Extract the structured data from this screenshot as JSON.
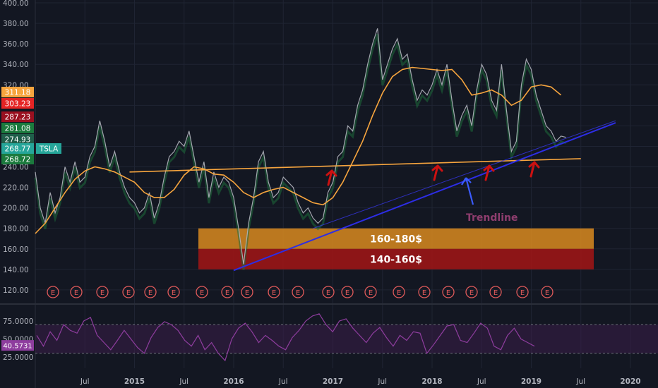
{
  "chart_data": [
    {
      "type": "line",
      "symbol": "TSLA",
      "title": "",
      "xlabel": "",
      "ylabel": "",
      "ylim": [
        100,
        400
      ],
      "y_ticks": [
        "400.00",
        "380.00",
        "360.00",
        "340.00",
        "320.00",
        "300.00",
        "280.00",
        "260.00",
        "240.00",
        "220.00",
        "200.00",
        "180.00",
        "160.00",
        "140.00",
        "120.00"
      ],
      "x_ticks": [
        {
          "label": "Jul",
          "t": 2014.5
        },
        {
          "label": "2015",
          "t": 2015.0
        },
        {
          "label": "Jul",
          "t": 2015.5
        },
        {
          "label": "2016",
          "t": 2016.0
        },
        {
          "label": "Jul",
          "t": 2016.5
        },
        {
          "label": "2017",
          "t": 2017.0
        },
        {
          "label": "Jul",
          "t": 2017.5
        },
        {
          "label": "2018",
          "t": 2018.0
        },
        {
          "label": "Jul",
          "t": 2018.5
        },
        {
          "label": "2019",
          "t": 2019.0
        },
        {
          "label": "Jul",
          "t": 2019.5
        },
        {
          "label": "2020",
          "t": 2020.0
        }
      ],
      "xlim": [
        2014.0,
        2020.6
      ],
      "series": [
        {
          "key": "price",
          "color": "#b2b5be",
          "points": [
            [
              2014.0,
              235
            ],
            [
              2014.05,
              200
            ],
            [
              2014.1,
              185
            ],
            [
              2014.15,
              215
            ],
            [
              2014.2,
              195
            ],
            [
              2014.25,
              210
            ],
            [
              2014.3,
              240
            ],
            [
              2014.35,
              225
            ],
            [
              2014.4,
              245
            ],
            [
              2014.45,
              225
            ],
            [
              2014.5,
              230
            ],
            [
              2014.55,
              250
            ],
            [
              2014.6,
              260
            ],
            [
              2014.65,
              285
            ],
            [
              2014.7,
              265
            ],
            [
              2014.75,
              240
            ],
            [
              2014.8,
              255
            ],
            [
              2014.85,
              235
            ],
            [
              2014.9,
              220
            ],
            [
              2014.95,
              210
            ],
            [
              2015.0,
              205
            ],
            [
              2015.05,
              195
            ],
            [
              2015.1,
              200
            ],
            [
              2015.15,
              215
            ],
            [
              2015.2,
              190
            ],
            [
              2015.25,
              205
            ],
            [
              2015.3,
              230
            ],
            [
              2015.35,
              250
            ],
            [
              2015.4,
              255
            ],
            [
              2015.45,
              265
            ],
            [
              2015.5,
              260
            ],
            [
              2015.55,
              275
            ],
            [
              2015.6,
              250
            ],
            [
              2015.65,
              225
            ],
            [
              2015.7,
              245
            ],
            [
              2015.75,
              210
            ],
            [
              2015.8,
              235
            ],
            [
              2015.85,
              220
            ],
            [
              2015.9,
              230
            ],
            [
              2015.95,
              225
            ],
            [
              2016.0,
              210
            ],
            [
              2016.05,
              180
            ],
            [
              2016.1,
              145
            ],
            [
              2016.15,
              185
            ],
            [
              2016.2,
              210
            ],
            [
              2016.25,
              245
            ],
            [
              2016.3,
              255
            ],
            [
              2016.35,
              225
            ],
            [
              2016.4,
              210
            ],
            [
              2016.45,
              215
            ],
            [
              2016.5,
              230
            ],
            [
              2016.55,
              225
            ],
            [
              2016.6,
              220
            ],
            [
              2016.65,
              205
            ],
            [
              2016.7,
              195
            ],
            [
              2016.75,
              200
            ],
            [
              2016.8,
              190
            ],
            [
              2016.85,
              185
            ],
            [
              2016.9,
              190
            ],
            [
              2016.95,
              215
            ],
            [
              2017.0,
              225
            ],
            [
              2017.05,
              250
            ],
            [
              2017.1,
              255
            ],
            [
              2017.15,
              280
            ],
            [
              2017.2,
              275
            ],
            [
              2017.25,
              300
            ],
            [
              2017.3,
              315
            ],
            [
              2017.35,
              340
            ],
            [
              2017.4,
              360
            ],
            [
              2017.45,
              375
            ],
            [
              2017.5,
              325
            ],
            [
              2017.55,
              340
            ],
            [
              2017.6,
              355
            ],
            [
              2017.65,
              365
            ],
            [
              2017.7,
              345
            ],
            [
              2017.75,
              350
            ],
            [
              2017.8,
              325
            ],
            [
              2017.85,
              305
            ],
            [
              2017.9,
              315
            ],
            [
              2017.95,
              310
            ],
            [
              2018.0,
              320
            ],
            [
              2018.05,
              335
            ],
            [
              2018.1,
              320
            ],
            [
              2018.15,
              340
            ],
            [
              2018.2,
              305
            ],
            [
              2018.25,
              275
            ],
            [
              2018.3,
              290
            ],
            [
              2018.35,
              300
            ],
            [
              2018.4,
              280
            ],
            [
              2018.45,
              315
            ],
            [
              2018.5,
              340
            ],
            [
              2018.55,
              330
            ],
            [
              2018.6,
              305
            ],
            [
              2018.65,
              295
            ],
            [
              2018.7,
              340
            ],
            [
              2018.75,
              295
            ],
            [
              2018.8,
              255
            ],
            [
              2018.85,
              265
            ],
            [
              2018.9,
              320
            ],
            [
              2018.95,
              345
            ],
            [
              2019.0,
              335
            ],
            [
              2019.05,
              310
            ],
            [
              2019.1,
              295
            ],
            [
              2019.15,
              280
            ],
            [
              2019.2,
              275
            ],
            [
              2019.25,
              265
            ],
            [
              2019.3,
              270
            ],
            [
              2019.35,
              268.77
            ]
          ]
        },
        {
          "key": "moving_average",
          "color": "#f7a53e",
          "points": [
            [
              2014.0,
              175
            ],
            [
              2014.1,
              185
            ],
            [
              2014.2,
              200
            ],
            [
              2014.3,
              215
            ],
            [
              2014.4,
              228
            ],
            [
              2014.5,
              236
            ],
            [
              2014.6,
              240
            ],
            [
              2014.7,
              238
            ],
            [
              2014.8,
              235
            ],
            [
              2014.9,
              230
            ],
            [
              2015.0,
              225
            ],
            [
              2015.1,
              215
            ],
            [
              2015.2,
              210
            ],
            [
              2015.3,
              210
            ],
            [
              2015.4,
              218
            ],
            [
              2015.5,
              232
            ],
            [
              2015.6,
              240
            ],
            [
              2015.7,
              238
            ],
            [
              2015.8,
              233
            ],
            [
              2015.9,
              232
            ],
            [
              2016.0,
              225
            ],
            [
              2016.1,
              215
            ],
            [
              2016.2,
              210
            ],
            [
              2016.3,
              215
            ],
            [
              2016.4,
              218
            ],
            [
              2016.5,
              220
            ],
            [
              2016.6,
              215
            ],
            [
              2016.7,
              210
            ],
            [
              2016.8,
              205
            ],
            [
              2016.9,
              203
            ],
            [
              2017.0,
              210
            ],
            [
              2017.1,
              225
            ],
            [
              2017.2,
              245
            ],
            [
              2017.3,
              265
            ],
            [
              2017.4,
              290
            ],
            [
              2017.5,
              312
            ],
            [
              2017.6,
              328
            ],
            [
              2017.7,
              335
            ],
            [
              2017.8,
              337
            ],
            [
              2017.9,
              336
            ],
            [
              2018.0,
              335
            ],
            [
              2018.1,
              334
            ],
            [
              2018.2,
              335
            ],
            [
              2018.3,
              325
            ],
            [
              2018.4,
              310
            ],
            [
              2018.5,
              312
            ],
            [
              2018.6,
              315
            ],
            [
              2018.7,
              310
            ],
            [
              2018.8,
              300
            ],
            [
              2018.9,
              305
            ],
            [
              2019.0,
              318
            ],
            [
              2019.1,
              320
            ],
            [
              2019.2,
              318
            ],
            [
              2019.3,
              310
            ]
          ]
        }
      ],
      "price_labels": [
        {
          "value": "311.18",
          "color": "#f7a53e"
        },
        {
          "value": "303.23",
          "color": "#e52424"
        },
        {
          "value": "287.23",
          "color": "#9a1020"
        },
        {
          "value": "281.08",
          "color": "#1b7a3d"
        },
        {
          "value": "274.93",
          "color": "#1f5e4a"
        },
        {
          "value": "268.77",
          "color": "#26a69a",
          "symbol": "TSLA"
        },
        {
          "value": "268.72",
          "color": "#1b7a3d"
        }
      ],
      "zones": [
        {
          "label": "160-180$",
          "low": 160,
          "high": 180,
          "color": "#d98a1e"
        },
        {
          "label": "140-160$",
          "low": 140,
          "high": 160,
          "color": "#a31515"
        }
      ],
      "annotations": {
        "trendline_text": "Trendline",
        "trendline_color": "#2d2de6",
        "support_color": "#f7a53e",
        "arrow_color": "#cc1111",
        "earnings_label": "E",
        "earnings_count": 19
      }
    },
    {
      "type": "line",
      "indicator": "RSI",
      "title": "",
      "ylim": [
        15,
        90
      ],
      "y_ticks": [
        "75.0000",
        "50.0000",
        "25.0000"
      ],
      "bands": [
        30,
        70
      ],
      "current_value": "40.5731",
      "series": [
        {
          "key": "rsi",
          "color": "#8e3d9e",
          "values": [
            55,
            40,
            60,
            48,
            70,
            62,
            58,
            75,
            80,
            55,
            45,
            35,
            48,
            62,
            50,
            38,
            30,
            52,
            66,
            74,
            70,
            62,
            48,
            40,
            55,
            35,
            45,
            30,
            20,
            50,
            65,
            72,
            60,
            45,
            55,
            48,
            40,
            35,
            52,
            62,
            75,
            82,
            85,
            70,
            60,
            75,
            78,
            65,
            55,
            45,
            58,
            66,
            52,
            40,
            55,
            48,
            60,
            58,
            30,
            42,
            55,
            68,
            70,
            48,
            45,
            58,
            72,
            65,
            40,
            35,
            55,
            65,
            50,
            45,
            40
          ]
        }
      ]
    }
  ]
}
